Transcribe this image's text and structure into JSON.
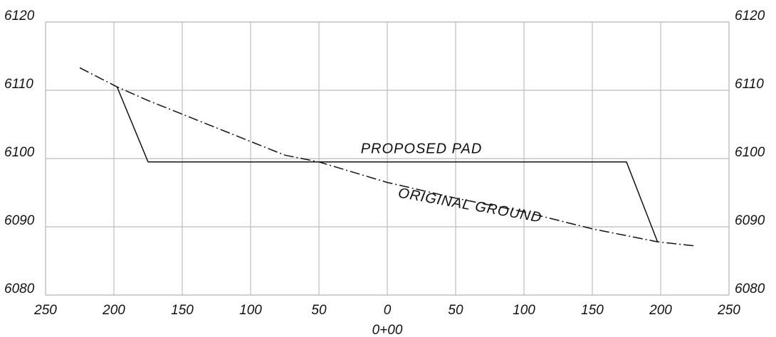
{
  "chart_data": {
    "type": "line",
    "title": "",
    "xlabel": "0+00",
    "ylabel": "",
    "grid": true,
    "x_tick_labels": [
      "250",
      "200",
      "150",
      "100",
      "50",
      "0",
      "50",
      "100",
      "150",
      "200",
      "250"
    ],
    "x_tick_values": [
      -250,
      -200,
      -150,
      -100,
      -50,
      0,
      50,
      100,
      150,
      200,
      250
    ],
    "y_ticks": [
      6080,
      6090,
      6100,
      6110,
      6120
    ],
    "y_tick_labels": [
      "6080",
      "6090",
      "6100",
      "6110",
      "6120"
    ],
    "xlim": [
      -250,
      250
    ],
    "ylim": [
      6080,
      6120
    ],
    "series": [
      {
        "name": "PROPOSED PAD",
        "style": "solid",
        "color": "#111111",
        "points": [
          [
            -197.7,
            6110.5
          ],
          [
            -175.0,
            6099.5
          ],
          [
            175.0,
            6099.5
          ],
          [
            197.7,
            6087.8
          ]
        ]
      },
      {
        "name": "ORIGINAL GROUND",
        "style": "dash-dot",
        "color": "#111111",
        "points": [
          [
            -225.0,
            6113.3
          ],
          [
            -197.7,
            6110.5
          ],
          [
            -175.0,
            6108.5
          ],
          [
            -150.0,
            6106.5
          ],
          [
            -100.0,
            6102.5
          ],
          [
            -75.0,
            6100.5
          ],
          [
            -50.0,
            6099.5
          ],
          [
            0.0,
            6096.5
          ],
          [
            50.0,
            6094.2
          ],
          [
            100.0,
            6092.2
          ],
          [
            150.0,
            6089.7
          ],
          [
            197.7,
            6087.8
          ],
          [
            225.0,
            6087.2
          ]
        ]
      }
    ],
    "annotations": [
      {
        "text": "PROPOSED PAD",
        "x": 25,
        "y": 6100.8,
        "rotate": 0
      },
      {
        "text": "ORIGINAL GROUND",
        "x": 60,
        "y": 6092.5,
        "rotate": 10
      }
    ],
    "colors": {
      "grid": "#bdbdbd",
      "line": "#111111",
      "text": "#111111"
    }
  }
}
